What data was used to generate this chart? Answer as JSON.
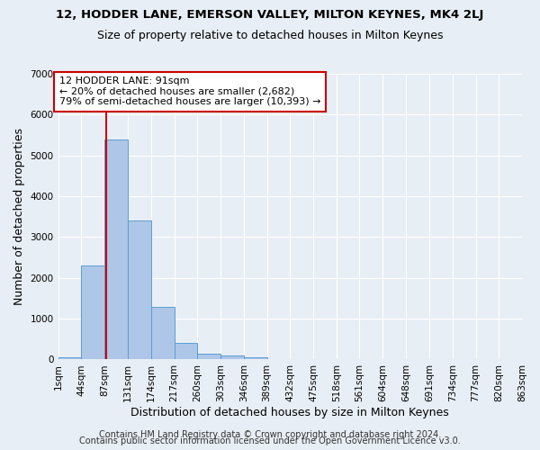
{
  "title": "12, HODDER LANE, EMERSON VALLEY, MILTON KEYNES, MK4 2LJ",
  "subtitle": "Size of property relative to detached houses in Milton Keynes",
  "xlabel": "Distribution of detached houses by size in Milton Keynes",
  "ylabel": "Number of detached properties",
  "bar_values": [
    50,
    2300,
    5400,
    3400,
    1300,
    400,
    150,
    100,
    50,
    5,
    3,
    2,
    1,
    0,
    0,
    0,
    0,
    0,
    0,
    0
  ],
  "bin_edges": [
    1,
    44,
    87,
    131,
    174,
    217,
    260,
    303,
    346,
    389,
    432,
    475,
    518,
    561,
    604,
    648,
    691,
    734,
    777,
    820,
    863
  ],
  "x_tick_labels": [
    "1sqm",
    "44sqm",
    "87sqm",
    "131sqm",
    "174sqm",
    "217sqm",
    "260sqm",
    "303sqm",
    "346sqm",
    "389sqm",
    "432sqm",
    "475sqm",
    "518sqm",
    "561sqm",
    "604sqm",
    "648sqm",
    "691sqm",
    "734sqm",
    "777sqm",
    "820sqm",
    "863sqm"
  ],
  "bar_color": "#aec6e8",
  "bar_edgecolor": "#5a9fd4",
  "red_line_x": 91,
  "ylim": [
    0,
    7000
  ],
  "yticks": [
    0,
    1000,
    2000,
    3000,
    4000,
    5000,
    6000,
    7000
  ],
  "annotation_text": "12 HODDER LANE: 91sqm\n← 20% of detached houses are smaller (2,682)\n79% of semi-detached houses are larger (10,393) →",
  "annotation_box_color": "#ffffff",
  "annotation_box_edgecolor": "#cc0000",
  "footer_line1": "Contains HM Land Registry data © Crown copyright and database right 2024.",
  "footer_line2": "Contains public sector information licensed under the Open Government Licence v3.0.",
  "background_color": "#e8eef5",
  "plot_background_color": "#e8eef5",
  "title_fontsize": 9.5,
  "subtitle_fontsize": 9,
  "axis_label_fontsize": 9,
  "tick_fontsize": 7.5,
  "annotation_fontsize": 8,
  "footer_fontsize": 7
}
